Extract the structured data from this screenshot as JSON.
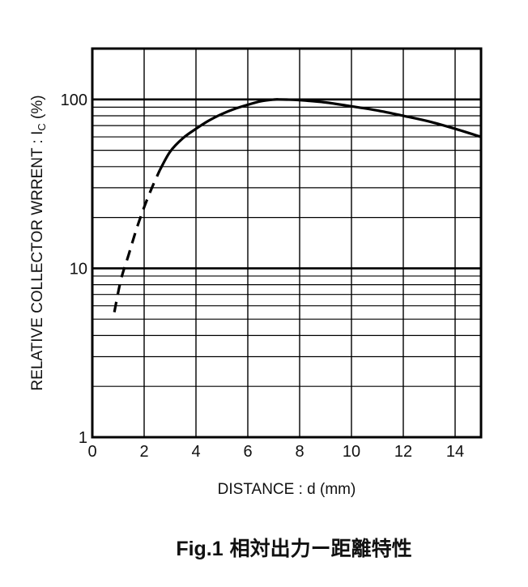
{
  "chart_data": {
    "type": "line",
    "xlabel": "DISTANCE : d (mm)",
    "ylabel": {
      "main": "RELATIVE  COLLECTOR  WRRENT : I",
      "sub": "C",
      "tail": " (%)"
    },
    "caption": {
      "prefix": "Fig.1",
      "text": "相対出力ー距離特性"
    },
    "xlim": [
      0,
      15
    ],
    "ylim": [
      1,
      200
    ],
    "yscale": "log",
    "grid": true,
    "x_ticks": [
      0,
      2,
      4,
      6,
      8,
      10,
      12,
      14
    ],
    "x_tick_labels": [
      "0",
      "2",
      "4",
      "6",
      "8",
      "10",
      "12",
      "14"
    ],
    "y_ticks": [
      1,
      10,
      100
    ],
    "y_tick_labels": [
      "1",
      "10",
      "100"
    ],
    "series": [
      {
        "style": "dashed",
        "color": "#000000",
        "x": [
          0.85,
          1.1,
          1.4,
          1.7,
          2.0,
          2.3,
          2.6
        ],
        "y": [
          5.5,
          8.5,
          12.0,
          17.0,
          23.0,
          30.0,
          38.0
        ]
      },
      {
        "style": "solid",
        "color": "#000000",
        "x": [
          2.6,
          3.0,
          3.5,
          4.0,
          4.5,
          5.0,
          5.5,
          6.0,
          6.5,
          7.0,
          7.2,
          7.5,
          8.0,
          9.0,
          10.0,
          11.0,
          12.0,
          13.0,
          14.0,
          15.0
        ],
        "y": [
          38.0,
          49.0,
          59.0,
          67.0,
          75.0,
          82.0,
          88.0,
          93.0,
          97.5,
          99.8,
          100.0,
          99.8,
          99.0,
          96.0,
          91.0,
          86.0,
          80.0,
          74.0,
          67.0,
          60.0
        ]
      }
    ]
  }
}
